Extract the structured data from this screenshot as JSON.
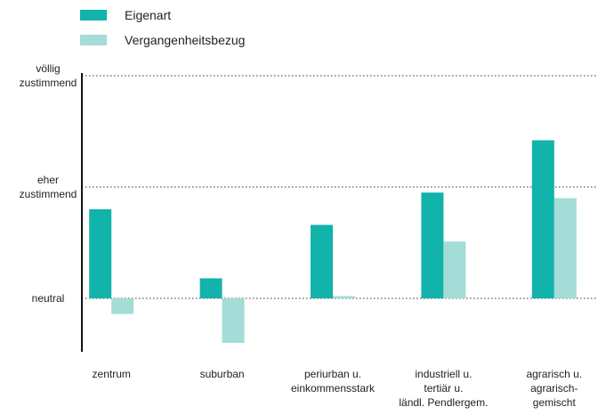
{
  "chart_data": {
    "type": "bar",
    "categories": [
      "zentrum",
      "suburban",
      "periurban u.\neinkommensstark",
      "industriell u.\ntertiär u.\nländl. Pendlergem.",
      "agrarisch u.\nagrarisch-\ngemischt"
    ],
    "series": [
      {
        "name": "Eigenart",
        "color": "#12b3aa",
        "values": [
          0.8,
          0.18,
          0.66,
          0.95,
          1.42
        ]
      },
      {
        "name": "Vergangenheitsbezug",
        "color": "#a4dcd8",
        "values": [
          -0.14,
          -0.4,
          0.02,
          0.51,
          0.9
        ]
      }
    ],
    "ylim": [
      -0.48,
      2.0
    ],
    "yticks": [
      {
        "value": 0,
        "label": "neutral"
      },
      {
        "value": 1,
        "label": "eher\nzustimmend"
      },
      {
        "value": 2,
        "label": "völlig\nzustimmend"
      }
    ],
    "grid": true
  }
}
